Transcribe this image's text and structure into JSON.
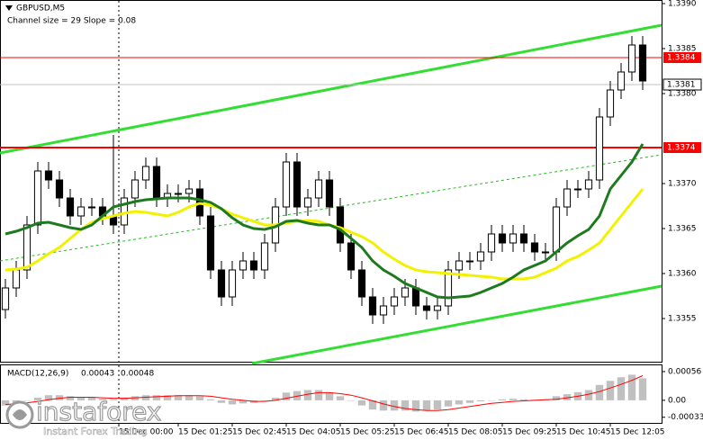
{
  "chart_data": [
    {
      "type": "candlestick",
      "title": "GBPUSD,M5",
      "subtitle": "Channel size = 29 Slope = 0.08",
      "up_color": "#ffffff",
      "down_color": "#000000",
      "open": [
        1.3356,
        1.33584,
        1.33604,
        1.33654,
        1.33714,
        1.33704,
        1.33684,
        1.33664,
        1.33674,
        1.33674,
        1.33664,
        1.33654,
        1.33684,
        1.33704,
        1.33719,
        1.33684,
        1.33689,
        1.33689,
        1.33694,
        1.33664,
        1.33604,
        1.33574,
        1.33604,
        1.33614,
        1.33604,
        1.33634,
        1.33674,
        1.33724,
        1.33674,
        1.33684,
        1.33704,
        1.33674,
        1.33634,
        1.33604,
        1.33574,
        1.33554,
        1.33564,
        1.33574,
        1.33584,
        1.33564,
        1.33559,
        1.33564,
        1.33604,
        1.33614,
        1.33614,
        1.33624,
        1.33644,
        1.33634,
        1.33644,
        1.33634,
        1.33624,
        1.33624,
        1.33674,
        1.33694,
        1.33694,
        1.33704,
        1.33774,
        1.33804,
        1.33824,
        1.33854
      ],
      "high": [
        1.33594,
        1.33614,
        1.33664,
        1.33724,
        1.33724,
        1.33714,
        1.33694,
        1.33684,
        1.33684,
        1.33684,
        1.33754,
        1.33694,
        1.33714,
        1.33729,
        1.33729,
        1.33699,
        1.33699,
        1.33704,
        1.33704,
        1.33674,
        1.33614,
        1.33614,
        1.33624,
        1.33624,
        1.33644,
        1.33684,
        1.33734,
        1.33734,
        1.33694,
        1.33714,
        1.33714,
        1.33684,
        1.33644,
        1.33614,
        1.33584,
        1.33574,
        1.33584,
        1.33594,
        1.33594,
        1.33574,
        1.33574,
        1.33614,
        1.33624,
        1.33624,
        1.33634,
        1.33654,
        1.33654,
        1.33654,
        1.33654,
        1.33644,
        1.33634,
        1.33684,
        1.33704,
        1.33704,
        1.33714,
        1.33784,
        1.33814,
        1.33834,
        1.33864,
        1.33864
      ],
      "low": [
        1.3355,
        1.33574,
        1.33594,
        1.33644,
        1.33694,
        1.33674,
        1.33654,
        1.33654,
        1.33664,
        1.33654,
        1.33644,
        1.33644,
        1.33674,
        1.33694,
        1.33674,
        1.33674,
        1.33679,
        1.33679,
        1.33654,
        1.33594,
        1.33564,
        1.33564,
        1.33594,
        1.33594,
        1.33594,
        1.33624,
        1.33664,
        1.33664,
        1.33664,
        1.33674,
        1.33664,
        1.33624,
        1.33594,
        1.33564,
        1.33544,
        1.33544,
        1.33554,
        1.33564,
        1.33554,
        1.33549,
        1.33549,
        1.33554,
        1.33594,
        1.33604,
        1.33604,
        1.33614,
        1.33624,
        1.33624,
        1.33624,
        1.33614,
        1.33614,
        1.33614,
        1.33664,
        1.33684,
        1.33684,
        1.33694,
        1.33764,
        1.33794,
        1.33814,
        1.33804
      ],
      "close": [
        1.33584,
        1.33604,
        1.33654,
        1.33714,
        1.33704,
        1.33684,
        1.33664,
        1.33674,
        1.33674,
        1.33664,
        1.33654,
        1.33684,
        1.33704,
        1.33719,
        1.33684,
        1.33689,
        1.33689,
        1.33694,
        1.33664,
        1.33604,
        1.33574,
        1.33604,
        1.33614,
        1.33604,
        1.33634,
        1.33674,
        1.33724,
        1.33674,
        1.33684,
        1.33704,
        1.33674,
        1.33634,
        1.33604,
        1.33574,
        1.33554,
        1.33564,
        1.33574,
        1.33584,
        1.33564,
        1.33559,
        1.33564,
        1.33604,
        1.33614,
        1.33614,
        1.33624,
        1.33644,
        1.33634,
        1.33644,
        1.33634,
        1.33624,
        1.33624,
        1.33674,
        1.33694,
        1.33694,
        1.33704,
        1.33774,
        1.33804,
        1.33824,
        1.33854,
        1.33814
      ],
      "lines": [
        {
          "color": "#f2f200",
          "values": [
            1.33604,
            1.33605,
            1.33607,
            1.33614,
            1.33622,
            1.33629,
            1.33639,
            1.33649,
            1.33657,
            1.33661,
            1.33664,
            1.33667,
            1.33669,
            1.33668,
            1.33666,
            1.33664,
            1.33668,
            1.33674,
            1.33678,
            1.33676,
            1.33672,
            1.33666,
            1.33662,
            1.33658,
            1.33654,
            1.33654,
            1.33656,
            1.33658,
            1.33659,
            1.33658,
            1.33654,
            1.33651,
            1.33646,
            1.33641,
            1.33634,
            1.33624,
            1.33616,
            1.33609,
            1.33604,
            1.33602,
            1.33601,
            1.336,
            1.33599,
            1.33598,
            1.33597,
            1.33596,
            1.33594,
            1.33594,
            1.33594,
            1.33596,
            1.33601,
            1.33606,
            1.33614,
            1.33619,
            1.33626,
            1.33634,
            1.33649,
            1.33664,
            1.33679,
            1.33694
          ]
        },
        {
          "color": "#1e7a1e",
          "values": [
            1.33644,
            1.33647,
            1.33651,
            1.33656,
            1.33657,
            1.33654,
            1.33651,
            1.33649,
            1.33654,
            1.33664,
            1.33674,
            1.33677,
            1.3368,
            1.33682,
            1.33683,
            1.33684,
            1.33684,
            1.33684,
            1.33682,
            1.33679,
            1.33672,
            1.33662,
            1.33654,
            1.3365,
            1.33649,
            1.33652,
            1.33658,
            1.33659,
            1.33656,
            1.33654,
            1.33654,
            1.33649,
            1.33639,
            1.33629,
            1.33614,
            1.33604,
            1.33597,
            1.33589,
            1.33584,
            1.33579,
            1.33574,
            1.33573,
            1.33574,
            1.33575,
            1.33579,
            1.33584,
            1.33589,
            1.33596,
            1.33604,
            1.33609,
            1.33614,
            1.33624,
            1.33634,
            1.33642,
            1.33649,
            1.33664,
            1.33694,
            1.33709,
            1.33724,
            1.33744
          ]
        }
      ],
      "levels": [
        1.3384,
        1.3374
      ],
      "level_color": "#ff0000",
      "last_price": 1.3381,
      "xlim": [
        -0.5,
        60.75
      ],
      "ylim": [
        1.335,
        1.339
      ],
      "yticks": [
        {
          "value": 1.339,
          "label": "1.3390"
        },
        1.3385,
        {
          "value": 1.338,
          "label": "1.3380"
        },
        {
          "value": 1.337,
          "label": "1.3370"
        },
        1.3365,
        {
          "value": 1.336,
          "label": "1.3360"
        },
        1.3355
      ],
      "xticks": [
        {
          "value": 10.5,
          "label": "15 Dec 00:00"
        },
        {
          "value": 16,
          "label": "15 Dec 01:25"
        },
        {
          "value": 21,
          "label": "15 Dec 02:45"
        },
        {
          "value": 26,
          "label": "15 Dec 04:05"
        },
        {
          "value": 31,
          "label": "15 Dec 05:25"
        },
        {
          "value": 36,
          "label": "15 Dec 06:45"
        },
        {
          "value": 41,
          "label": "15 Dec 08:05"
        },
        {
          "value": 46,
          "label": "15 Dec 09:25"
        },
        {
          "value": 51,
          "label": "15 Dec 10:45"
        },
        {
          "value": 56,
          "label": "15 Dec 12:05"
        }
      ]
    },
    {
      "type": "macd",
      "title": "MACD(12,26,9)",
      "readouts": [
        0.00043,
        0.00048
      ],
      "color": "#c0c0c0",
      "signal_color": "#ff0000",
      "values": [
        -0.0001,
        -5e-05,
        0,
        5e-05,
        0.0001,
        0.0001,
        8e-05,
        5e-05,
        5e-05,
        3e-05,
        2e-05,
        5e-05,
        8e-05,
        0.0001,
        0.0001,
        0.0001,
        0.0001,
        0.0001,
        8e-05,
        2e-05,
        -5e-05,
        -8e-05,
        -6e-05,
        -5e-05,
        0,
        5e-05,
        0.00015,
        0.00018,
        0.0002,
        0.0002,
        0.00015,
        8e-05,
        0,
        -0.0001,
        -0.00018,
        -0.0002,
        -0.0002,
        -0.0002,
        -0.00022,
        -0.0002,
        -0.00018,
        -0.00012,
        -8e-05,
        -5e-05,
        -2e-05,
        0,
        2e-05,
        3e-05,
        2e-05,
        1e-05,
        2e-05,
        8e-05,
        0.00012,
        0.00016,
        0.0002,
        0.0003,
        0.00038,
        0.00045,
        0.0005,
        0.00043
      ],
      "signal": [
        -8e-05,
        -7e-05,
        -5e-05,
        -2e-05,
        1e-05,
        4e-05,
        6e-05,
        6e-05,
        6e-05,
        5e-05,
        4e-05,
        4e-05,
        5e-05,
        6e-05,
        7e-05,
        8e-05,
        9e-05,
        9e-05,
        9e-05,
        8e-05,
        5e-05,
        2e-05,
        0,
        -2e-05,
        -2e-05,
        0,
        4e-05,
        8e-05,
        0.00012,
        0.00015,
        0.00015,
        0.00013,
        0.0001,
        5e-05,
        -1e-05,
        -7e-05,
        -0.00012,
        -0.00016,
        -0.00018,
        -0.0002,
        -0.0002,
        -0.00018,
        -0.00015,
        -0.00012,
        -9e-05,
        -6e-05,
        -4e-05,
        -2e-05,
        -1e-05,
        0,
        1e-05,
        2e-05,
        5e-05,
        8e-05,
        0.00012,
        0.00017,
        0.00024,
        0.00031,
        0.00039,
        0.00048
      ],
      "ylim": [
        -0.00044,
        0.0007
      ],
      "yticks": [
        0.00056,
        {
          "value": 0,
          "label": "0.00"
        },
        -0.00033
      ]
    }
  ],
  "watermark": {
    "brand": "instaforex",
    "tagline": "Instant Forex Trading"
  }
}
